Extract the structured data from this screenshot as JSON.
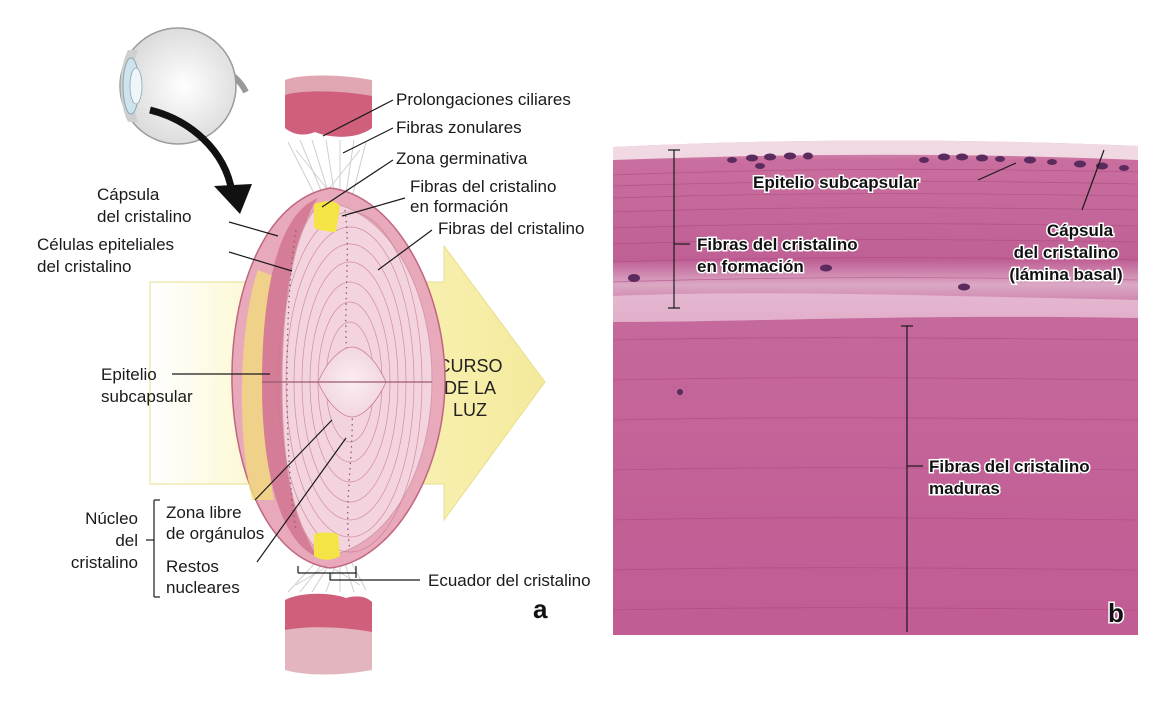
{
  "panel_a": {
    "label": "a",
    "labels": {
      "prolongaciones": "Prolongaciones ciliares",
      "fibras_zonulares": "Fibras zonulares",
      "zona_germinativa": "Zona germinativa",
      "fibras_formacion_1": "Fibras del cristalino",
      "fibras_formacion_2": "en formación",
      "fibras_cristalino": "Fibras del cristalino",
      "capsula_1": "Cápsula",
      "capsula_2": "del cristalino",
      "celulas_1": "Células epiteliales",
      "celulas_2": "del cristalino",
      "epitelio_1": "Epitelio",
      "epitelio_2": "subcapsular",
      "nucleo_1": "Núcleo",
      "nucleo_2": "del",
      "nucleo_3": "cristalino",
      "zona_libre_1": "Zona libre",
      "zona_libre_2": "de orgánulos",
      "restos_1": "Restos",
      "restos_2": "nucleares",
      "ecuador": "Ecuador del cristalino",
      "curso_1": "CURSO",
      "curso_2": "DE LA",
      "curso_3": "LUZ"
    }
  },
  "panel_b": {
    "label": "b",
    "labels": {
      "epitelio_sub": "Epitelio subcapsular",
      "capsula_1": "Cápsula",
      "capsula_2": "del cristalino",
      "capsula_3": "(lámina basal)",
      "formacion_1": "Fibras del cristalino",
      "formacion_2": "en formación",
      "maduras_1": "Fibras del cristalino",
      "maduras_2": "maduras"
    }
  },
  "colors": {
    "lens_pink": "#ecc3cf",
    "capsule_pink": "#d8798f",
    "germinal_yellow": "#f2e04a",
    "light_arrow": "#fbf6c8",
    "tissue": "#c65f96"
  }
}
